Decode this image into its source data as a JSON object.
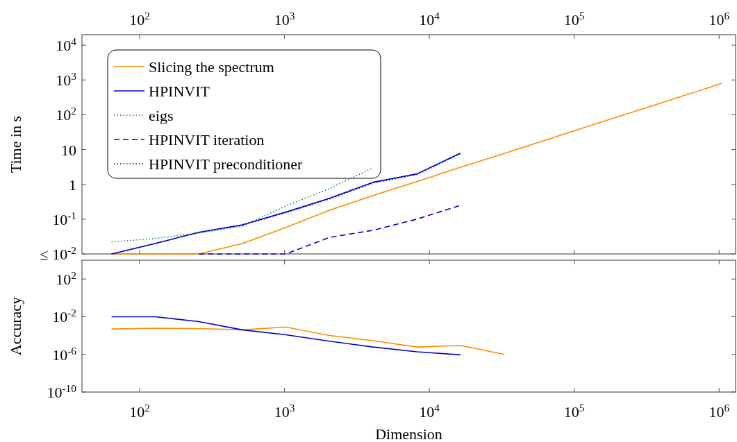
{
  "chart_data": [
    {
      "type": "line",
      "ylabel": "Time in s",
      "log": "xy",
      "legend": "top left",
      "xlim": [
        40,
        1300000
      ],
      "ylim": [
        0.01,
        20000
      ],
      "xticks": [
        {
          "value": 100,
          "label": "10$^{2}$"
        },
        {
          "value": 1000,
          "label": "10$^{3}$"
        },
        {
          "value": 10000,
          "label": "10$^{4}$"
        },
        {
          "value": 100000,
          "label": "10$^{5}$"
        },
        {
          "value": 1000000,
          "label": "10$^{6}$"
        }
      ],
      "yticks": [
        {
          "value": 0.01,
          "label": "≤ 10$^{-2}$"
        },
        {
          "value": 0.1,
          "label": "10$^{-1}$"
        },
        1,
        10,
        {
          "value": 100,
          "label": "10$^{2}$"
        },
        {
          "value": 1000,
          "label": "10$^{3}$"
        },
        {
          "value": 10000,
          "label": "10$^{4}$"
        }
      ],
      "series": [
        {
          "name": "Slicing the spectrum",
          "color": "#ff8c00",
          "line_style": "solid",
          "x": [
            64,
            128,
            256,
            512,
            1024,
            2048,
            4096,
            8192,
            16384,
            32768,
            65536,
            131072,
            262144,
            524288,
            1048576
          ],
          "values": [
            0.01,
            0.01,
            0.01,
            0.02,
            0.058,
            0.18,
            0.48,
            1.2,
            3.1,
            7.7,
            19.6,
            50,
            125,
            317,
            800
          ]
        },
        {
          "name": "HPINVIT",
          "color": "#0000cc",
          "line_style": "solid",
          "x": [
            64,
            128,
            256,
            512,
            1024,
            2048,
            4096,
            8192,
            16384
          ],
          "values": [
            0.01,
            0.02,
            0.042,
            0.069,
            0.16,
            0.4,
            1.15,
            2.0,
            7.9
          ]
        },
        {
          "name": "eigs",
          "color": "#008060",
          "line_style": "dotted",
          "x": [
            64,
            128,
            256,
            512,
            1024,
            2048,
            4096
          ],
          "values": [
            0.022,
            0.028,
            0.04,
            0.063,
            0.24,
            0.76,
            3.0
          ]
        },
        {
          "name": "HPINVIT iteration",
          "color": "#0000cc",
          "line_style": "dashed",
          "x": [
            256,
            512,
            1024,
            2048,
            4096,
            8192,
            16384
          ],
          "values": [
            0.01,
            0.01,
            0.01,
            0.03,
            0.048,
            0.1,
            0.25
          ]
        },
        {
          "name": "HPINVIT preconditioner",
          "color": "#0000cc",
          "line_style": "dotted",
          "x": [
            64,
            128,
            256,
            512,
            1024,
            2048,
            4096,
            8192,
            16384
          ],
          "values": [
            0.01,
            0.02,
            0.041,
            0.067,
            0.155,
            0.38,
            1.1,
            1.9,
            7.6
          ]
        }
      ]
    },
    {
      "type": "line",
      "xlabel": "Dimension",
      "ylabel": "Accuracy",
      "log": "xy",
      "xlim": [
        40,
        1300000
      ],
      "ylim": [
        1e-10,
        10000
      ],
      "xticks": [
        {
          "value": 100,
          "label": "10$^{2}$"
        },
        {
          "value": 1000,
          "label": "10$^{3}$"
        },
        {
          "value": 10000,
          "label": "10$^{4}$"
        },
        {
          "value": 100000,
          "label": "10$^{5}$"
        },
        {
          "value": 1000000,
          "label": "10$^{6}$"
        }
      ],
      "yticks": [
        {
          "value": 1e-10,
          "label": "10$^{-10}$"
        },
        {
          "value": 1e-06,
          "label": "10$^{-6}$"
        },
        {
          "value": 0.01,
          "label": "10$^{-2}$"
        },
        {
          "value": 100,
          "label": "10$^{2}$"
        }
      ],
      "series": [
        {
          "color": "#ff8c00",
          "line_style": "solid",
          "x": [
            64,
            128,
            256,
            512,
            1024,
            2048,
            4096,
            8192,
            16384,
            32768
          ],
          "values": [
            0.0005,
            0.0006,
            0.00055,
            0.0004,
            0.0008,
            0.0001,
            2.8e-05,
            6e-06,
            9e-06,
            1e-06
          ]
        },
        {
          "color": "#0000cc",
          "line_style": "solid",
          "x": [
            64,
            128,
            256,
            512,
            1024,
            2048,
            4096,
            8192,
            16384
          ],
          "values": [
            0.01,
            0.01,
            0.003,
            0.0004,
            0.00012,
            2.5e-05,
            6e-06,
            1.9e-06,
            9e-07
          ]
        }
      ]
    }
  ]
}
